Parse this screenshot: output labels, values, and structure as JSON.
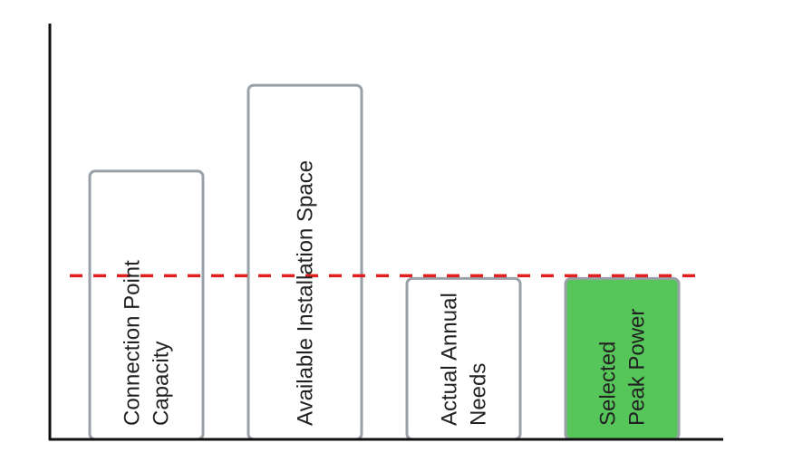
{
  "chart_data": {
    "type": "bar",
    "categories": [
      [
        "Connection Point",
        "Capacity"
      ],
      [
        "Available Installation Space"
      ],
      [
        "Actual Annual",
        "Needs"
      ],
      [
        "Selected",
        "Peak Power"
      ]
    ],
    "values": [
      100,
      132,
      60,
      60
    ],
    "ylim": [
      0,
      155
    ],
    "reference_line": {
      "value": 61,
      "style": "dashed",
      "color": "#e02020"
    },
    "colors": {
      "bar_fill_default": "#ffffff",
      "bar_stroke": "#9aa0a8",
      "bar_fill_highlight": "#57c65a",
      "highlight_index": 3,
      "axis": "#111111"
    },
    "title": "",
    "xlabel": "",
    "ylabel": "",
    "grid": false,
    "legend": "none"
  }
}
